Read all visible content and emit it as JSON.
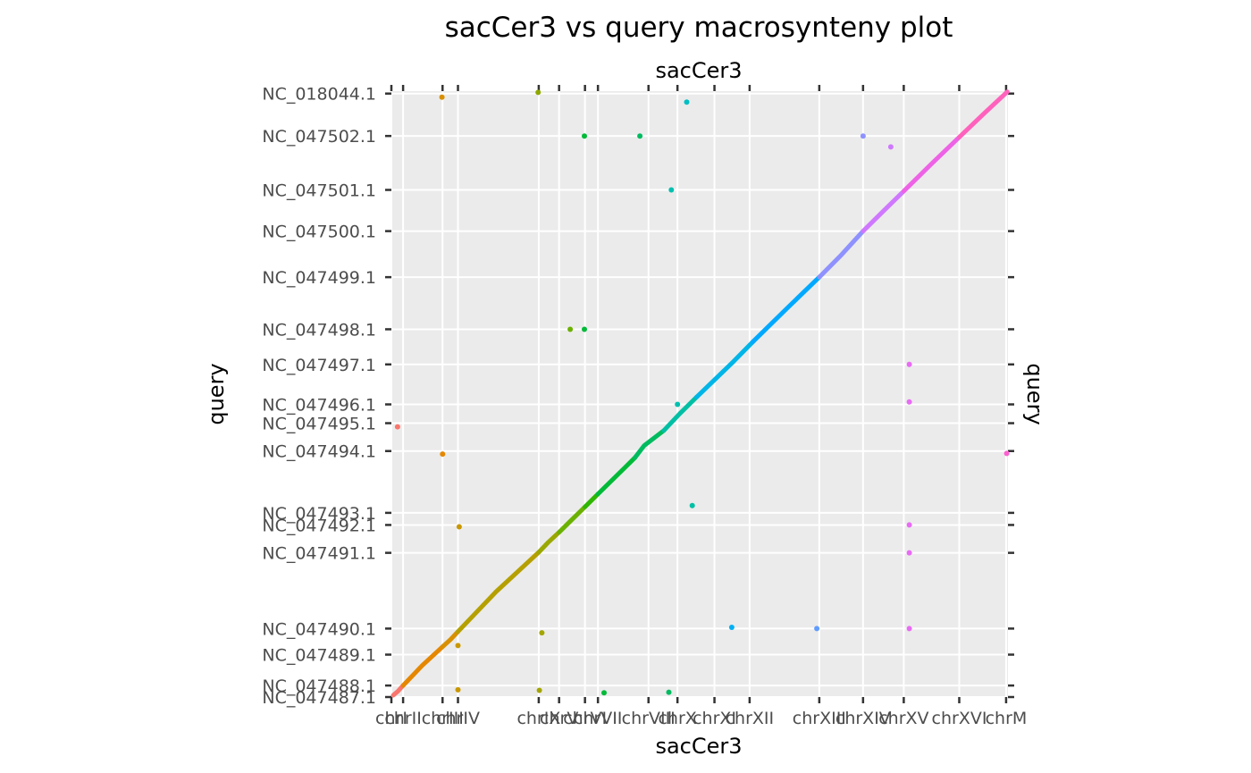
{
  "chart_data": {
    "type": "scatter",
    "title": "sacCer3 vs query macrosynteny plot",
    "xlabel": "sacCer3",
    "x2label": "sacCer3",
    "ylabel": "query",
    "y2label": "query",
    "xlim": [
      0,
      100
    ],
    "ylim": [
      0,
      100
    ],
    "grid": true,
    "x_categories": [
      {
        "label": "chrI",
        "start": 0,
        "end": 1.9
      },
      {
        "label": "chrII",
        "start": 1.9,
        "end": 8.3
      },
      {
        "label": "chrIII",
        "start": 8.3,
        "end": 10.8
      },
      {
        "label": "chrIV",
        "start": 10.8,
        "end": 23.9
      },
      {
        "label": "chrIX",
        "start": 23.9,
        "end": 27.2
      },
      {
        "label": "chrV",
        "start": 27.2,
        "end": 31.4
      },
      {
        "label": "chrVI",
        "start": 31.4,
        "end": 33.5
      },
      {
        "label": "chrVII",
        "start": 33.5,
        "end": 41.7
      },
      {
        "label": "chrVIII",
        "start": 41.7,
        "end": 46.4
      },
      {
        "label": "chrX",
        "start": 46.4,
        "end": 52.4
      },
      {
        "label": "chrXI",
        "start": 52.4,
        "end": 58.1
      },
      {
        "label": "chrXII",
        "start": 58.1,
        "end": 69.4
      },
      {
        "label": "chrXIII",
        "start": 69.4,
        "end": 76.5
      },
      {
        "label": "chrXIV",
        "start": 76.5,
        "end": 83.1
      },
      {
        "label": "chrXV",
        "start": 83.1,
        "end": 92.1
      },
      {
        "label": "chrXVI",
        "start": 92.1,
        "end": 99.7
      },
      {
        "label": "chrM",
        "start": 99.7,
        "end": 100
      }
    ],
    "y_categories": [
      {
        "label": "NC_047487.1",
        "start": 0,
        "end": 1.9
      },
      {
        "label": "NC_047488.1",
        "start": 1.9,
        "end": 7.0
      },
      {
        "label": "NC_047489.1",
        "start": 7.0,
        "end": 11.3
      },
      {
        "label": "NC_047490.1",
        "start": 11.3,
        "end": 23.8
      },
      {
        "label": "NC_047491.1",
        "start": 23.8,
        "end": 28.4
      },
      {
        "label": "NC_047492.1",
        "start": 28.4,
        "end": 30.4
      },
      {
        "label": "NC_047493.1",
        "start": 30.4,
        "end": 40.6
      },
      {
        "label": "NC_047494.1",
        "start": 40.6,
        "end": 45.2
      },
      {
        "label": "NC_047495.1",
        "start": 45.2,
        "end": 48.3
      },
      {
        "label": "NC_047496.1",
        "start": 48.3,
        "end": 54.9
      },
      {
        "label": "NC_047497.1",
        "start": 54.9,
        "end": 60.7
      },
      {
        "label": "NC_047498.1",
        "start": 60.7,
        "end": 69.3
      },
      {
        "label": "NC_047499.1",
        "start": 69.3,
        "end": 76.9
      },
      {
        "label": "NC_047500.1",
        "start": 76.9,
        "end": 83.7
      },
      {
        "label": "NC_047501.1",
        "start": 83.7,
        "end": 92.6
      },
      {
        "label": "NC_047502.1",
        "start": 92.6,
        "end": 99.6
      },
      {
        "label": "NC_018044.1",
        "start": 99.6,
        "end": 100
      }
    ],
    "colors": [
      "#f8766d",
      "#e58700",
      "#c99800",
      "#a3a500",
      "#6bb100",
      "#00ba38",
      "#00bf7d",
      "#00c0af",
      "#00bcd8",
      "#00b0f6",
      "#619cff",
      "#b983ff",
      "#e76bf3",
      "#fd61d1",
      "#ff67a4"
    ],
    "series": [
      {
        "x": [
          0.3,
          1.1,
          1.9
        ],
        "y": [
          0.3,
          1.0,
          1.9
        ],
        "color": "#f8766d"
      },
      {
        "x": [
          1.9,
          5.0,
          8.3
        ],
        "y": [
          1.9,
          5.2,
          8.3
        ],
        "color": "#e58700"
      },
      {
        "x": [
          8.3,
          9.6,
          10.8
        ],
        "y": [
          8.3,
          9.5,
          10.8
        ],
        "color": "#d89000"
      },
      {
        "x": [
          10.8,
          17.0,
          23.9
        ],
        "y": [
          10.8,
          17.4,
          23.9
        ],
        "color": "#b5a000"
      },
      {
        "x": [
          23.9,
          25.5,
          27.2
        ],
        "y": [
          23.9,
          25.6,
          27.2
        ],
        "color": "#9aa800"
      },
      {
        "x": [
          27.2,
          29.3,
          31.4
        ],
        "y": [
          27.2,
          29.3,
          31.4
        ],
        "color": "#6bb100"
      },
      {
        "x": [
          31.4,
          32.5,
          33.5
        ],
        "y": [
          31.4,
          32.5,
          33.5
        ],
        "color": "#2fb600"
      },
      {
        "x": [
          33.5,
          37.6,
          39.5
        ],
        "y": [
          33.5,
          37.6,
          39.5
        ],
        "color": "#00ba38"
      },
      {
        "x": [
          39.5,
          41.0,
          44.2
        ],
        "y": [
          39.5,
          41.5,
          44.0
        ],
        "color": "#00bb60"
      },
      {
        "x": [
          44.2,
          46.8,
          49.5
        ],
        "y": [
          44.0,
          46.8,
          49.5
        ],
        "color": "#00bfa4"
      },
      {
        "x": [
          49.5,
          55.5,
          58.6
        ],
        "y": [
          49.5,
          55.4,
          58.6
        ],
        "color": "#00b5e8"
      },
      {
        "x": [
          58.6,
          64.0,
          69.4
        ],
        "y": [
          58.6,
          64.0,
          69.3
        ],
        "color": "#00a9ff"
      },
      {
        "x": [
          69.4,
          73.0,
          76.5
        ],
        "y": [
          69.3,
          73.0,
          76.9
        ],
        "color": "#8f91ff"
      },
      {
        "x": [
          76.5,
          79.8,
          83.1
        ],
        "y": [
          76.9,
          80.2,
          83.5
        ],
        "color": "#cf78ff"
      },
      {
        "x": [
          83.1,
          87.6,
          92.1
        ],
        "y": [
          83.5,
          88.0,
          92.4
        ],
        "color": "#ee62e6"
      },
      {
        "x": [
          92.1,
          96.0,
          99.9
        ],
        "y": [
          92.4,
          96.2,
          99.9
        ],
        "color": "#ff62bc"
      }
    ],
    "points": [
      {
        "x": 1.0,
        "y": 44.6,
        "color": "#f8766d"
      },
      {
        "x": 8.2,
        "y": 99.0,
        "color": "#d89000"
      },
      {
        "x": 8.3,
        "y": 40.1,
        "color": "#e58700"
      },
      {
        "x": 11.0,
        "y": 28.1,
        "color": "#c99800"
      },
      {
        "x": 10.8,
        "y": 8.5,
        "color": "#c99800"
      },
      {
        "x": 10.8,
        "y": 1.2,
        "color": "#c99800"
      },
      {
        "x": 23.8,
        "y": 99.8,
        "color": "#8fa800"
      },
      {
        "x": 24.4,
        "y": 10.6,
        "color": "#a3a500"
      },
      {
        "x": 24.0,
        "y": 1.1,
        "color": "#a3a500"
      },
      {
        "x": 29.0,
        "y": 60.7,
        "color": "#6bb100"
      },
      {
        "x": 31.3,
        "y": 60.7,
        "color": "#00ba38"
      },
      {
        "x": 31.3,
        "y": 92.6,
        "color": "#00ba38"
      },
      {
        "x": 40.3,
        "y": 92.6,
        "color": "#00bb60"
      },
      {
        "x": 34.5,
        "y": 0.7,
        "color": "#00ba38"
      },
      {
        "x": 45.4,
        "y": 83.7,
        "color": "#00c0af"
      },
      {
        "x": 47.9,
        "y": 98.2,
        "color": "#00bfc4"
      },
      {
        "x": 46.4,
        "y": 48.3,
        "color": "#00c0af"
      },
      {
        "x": 48.8,
        "y": 31.6,
        "color": "#00bfa4"
      },
      {
        "x": 45.0,
        "y": 0.8,
        "color": "#00bb60"
      },
      {
        "x": 55.2,
        "y": 11.5,
        "color": "#00b0f6"
      },
      {
        "x": 69.0,
        "y": 11.3,
        "color": "#619cff"
      },
      {
        "x": 76.5,
        "y": 92.6,
        "color": "#8f91ff"
      },
      {
        "x": 81.0,
        "y": 90.8,
        "color": "#cf78ff"
      },
      {
        "x": 84.0,
        "y": 54.9,
        "color": "#e76bf3"
      },
      {
        "x": 84.0,
        "y": 48.7,
        "color": "#e76bf3"
      },
      {
        "x": 84.0,
        "y": 28.4,
        "color": "#e76bf3"
      },
      {
        "x": 84.0,
        "y": 23.8,
        "color": "#e76bf3"
      },
      {
        "x": 84.0,
        "y": 11.3,
        "color": "#e76bf3"
      },
      {
        "x": 99.8,
        "y": 40.2,
        "color": "#fd61d1"
      }
    ]
  }
}
